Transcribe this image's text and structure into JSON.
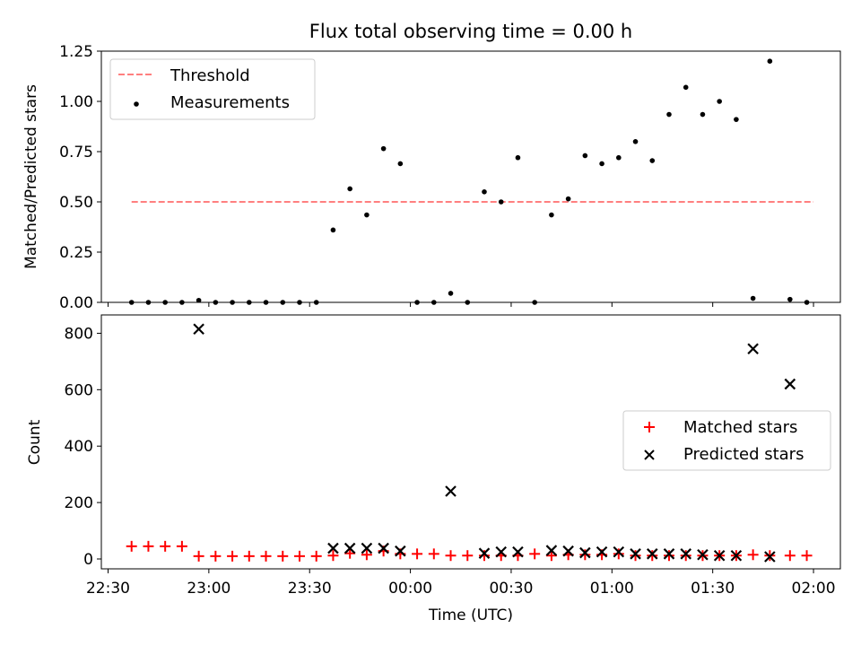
{
  "chart_data": [
    {
      "type": "scatter",
      "title": "Flux total observing time = 0.00 h",
      "ylabel": "Matched/Predicted stars",
      "ylim": [
        0,
        1.25
      ],
      "yticks": [
        "0.00",
        "0.25",
        "0.50",
        "0.75",
        "1.00",
        "1.25"
      ],
      "threshold": {
        "name": "Threshold",
        "value": 0.5,
        "x_range": [
          "22:37",
          "02:00"
        ],
        "color": "#ff7f7f"
      },
      "legend": {
        "position": "top-left",
        "entries": [
          "Threshold",
          "Measurements"
        ]
      },
      "series": [
        {
          "name": "Measurements",
          "color": "#000000",
          "x": [
            "22:37",
            "22:42",
            "22:47",
            "22:52",
            "22:57",
            "23:02",
            "23:07",
            "23:12",
            "23:17",
            "23:22",
            "23:27",
            "23:32",
            "23:37",
            "23:42",
            "23:47",
            "23:52",
            "23:57",
            "00:02",
            "00:07",
            "00:12",
            "00:17",
            "00:22",
            "00:27",
            "00:32",
            "00:37",
            "00:42",
            "00:47",
            "00:52",
            "00:57",
            "01:02",
            "01:07",
            "01:12",
            "01:17",
            "01:22",
            "01:27",
            "01:32",
            "01:37",
            "01:42",
            "01:47",
            "01:53",
            "01:58"
          ],
          "y": [
            0,
            0,
            0,
            0,
            0.01,
            0,
            0,
            0,
            0,
            0,
            0,
            0,
            0.36,
            0.565,
            0.435,
            0.765,
            0.69,
            0,
            0,
            0.045,
            0,
            0.55,
            0.5,
            0.72,
            0,
            0.435,
            0.515,
            0.73,
            0.69,
            0.72,
            0.8,
            0.705,
            0.935,
            1.07,
            0.935,
            1.0,
            0.91,
            0.02,
            1.2,
            0.015,
            0
          ]
        }
      ]
    },
    {
      "type": "scatter",
      "xlabel": "Time (UTC)",
      "ylabel": "Count",
      "xlim": [
        "22:28",
        "02:08"
      ],
      "xticks": [
        "22:30",
        "23:00",
        "23:30",
        "00:00",
        "00:30",
        "01:00",
        "01:30",
        "02:00"
      ],
      "ylim": [
        -35,
        865
      ],
      "yticks": [
        "0",
        "200",
        "400",
        "600",
        "800"
      ],
      "legend": {
        "position": "center-right",
        "entries": [
          "Matched stars",
          "Predicted stars"
        ]
      },
      "series": [
        {
          "name": "Matched stars",
          "marker": "plus",
          "color": "#ff0000",
          "x": [
            "22:37",
            "22:42",
            "22:47",
            "22:52",
            "22:57",
            "23:02",
            "23:07",
            "23:12",
            "23:17",
            "23:22",
            "23:27",
            "23:32",
            "23:37",
            "23:42",
            "23:47",
            "23:52",
            "23:57",
            "00:02",
            "00:07",
            "00:12",
            "00:17",
            "00:22",
            "00:27",
            "00:32",
            "00:37",
            "00:42",
            "00:47",
            "00:52",
            "00:57",
            "01:02",
            "01:07",
            "01:12",
            "01:17",
            "01:22",
            "01:27",
            "01:32",
            "01:37",
            "01:42",
            "01:47",
            "01:53",
            "01:58"
          ],
          "y": [
            45,
            45,
            45,
            45,
            10,
            10,
            10,
            10,
            10,
            10,
            10,
            10,
            12,
            20,
            15,
            28,
            18,
            18,
            18,
            12,
            12,
            12,
            12,
            12,
            18,
            12,
            15,
            15,
            15,
            18,
            12,
            12,
            12,
            12,
            12,
            12,
            12,
            15,
            12,
            12,
            12
          ]
        },
        {
          "name": "Predicted stars",
          "marker": "x",
          "color": "#000000",
          "x": [
            "22:57",
            "23:37",
            "23:42",
            "23:47",
            "23:52",
            "23:57",
            "00:12",
            "00:22",
            "00:27",
            "00:32",
            "00:42",
            "00:47",
            "00:52",
            "00:57",
            "01:02",
            "01:07",
            "01:12",
            "01:17",
            "01:22",
            "01:27",
            "01:32",
            "01:37",
            "01:42",
            "01:47",
            "01:53"
          ],
          "y": [
            815,
            38,
            38,
            38,
            38,
            28,
            240,
            20,
            25,
            25,
            30,
            28,
            22,
            25,
            25,
            18,
            18,
            18,
            18,
            15,
            12,
            12,
            745,
            8,
            620
          ]
        }
      ]
    }
  ]
}
